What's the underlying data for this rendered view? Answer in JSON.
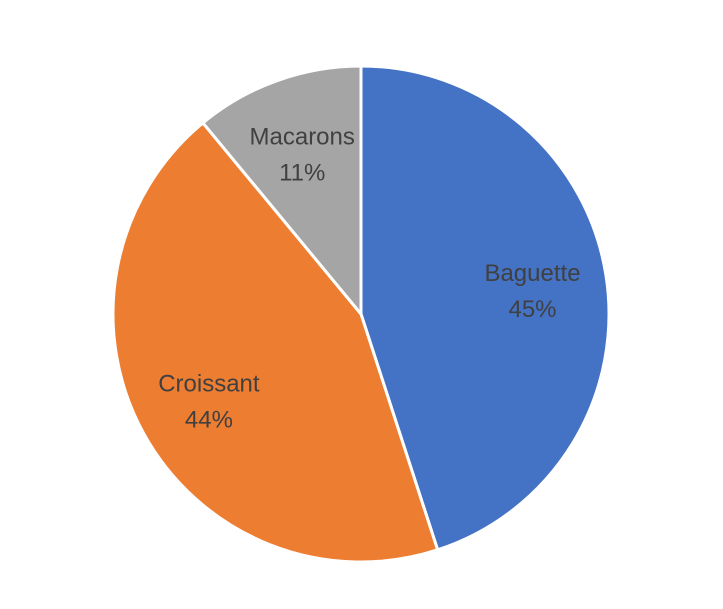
{
  "chart_data": {
    "type": "pie",
    "categories": [
      "Baguette",
      "Croissant",
      "Macarons"
    ],
    "values": [
      45,
      44,
      11
    ],
    "data_labels": [
      "45%",
      "44%",
      "11%"
    ],
    "colors": [
      "#4472C4",
      "#ED7D31",
      "#A5A5A5"
    ],
    "start_angle": "12 o'clock",
    "direction": "clockwise",
    "legend": "none",
    "title": ""
  }
}
